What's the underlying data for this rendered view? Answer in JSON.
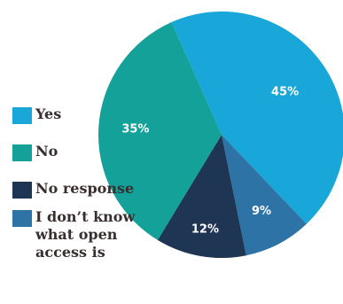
{
  "chart_data": {
    "type": "pie",
    "slices": [
      {
        "label": "Yes",
        "value": 45,
        "display": "45%",
        "color": "#18a7d8"
      },
      {
        "label": "I don’t know what open access is",
        "value": 9,
        "display": "9%",
        "color": "#2d73a6"
      },
      {
        "label": "No response",
        "value": 12,
        "display": "12%",
        "color": "#1e3554"
      },
      {
        "label": "No",
        "value": 35,
        "display": "35%",
        "color": "#14a19a"
      }
    ],
    "legend": {
      "placement": "left",
      "items": [
        {
          "label": "Yes",
          "color": "#18a7d8"
        },
        {
          "label": "No",
          "color": "#14a19a"
        },
        {
          "label": "No response",
          "color": "#1e3554"
        },
        {
          "label": "I don’t know what open access is",
          "color": "#2d73a6"
        }
      ]
    }
  }
}
